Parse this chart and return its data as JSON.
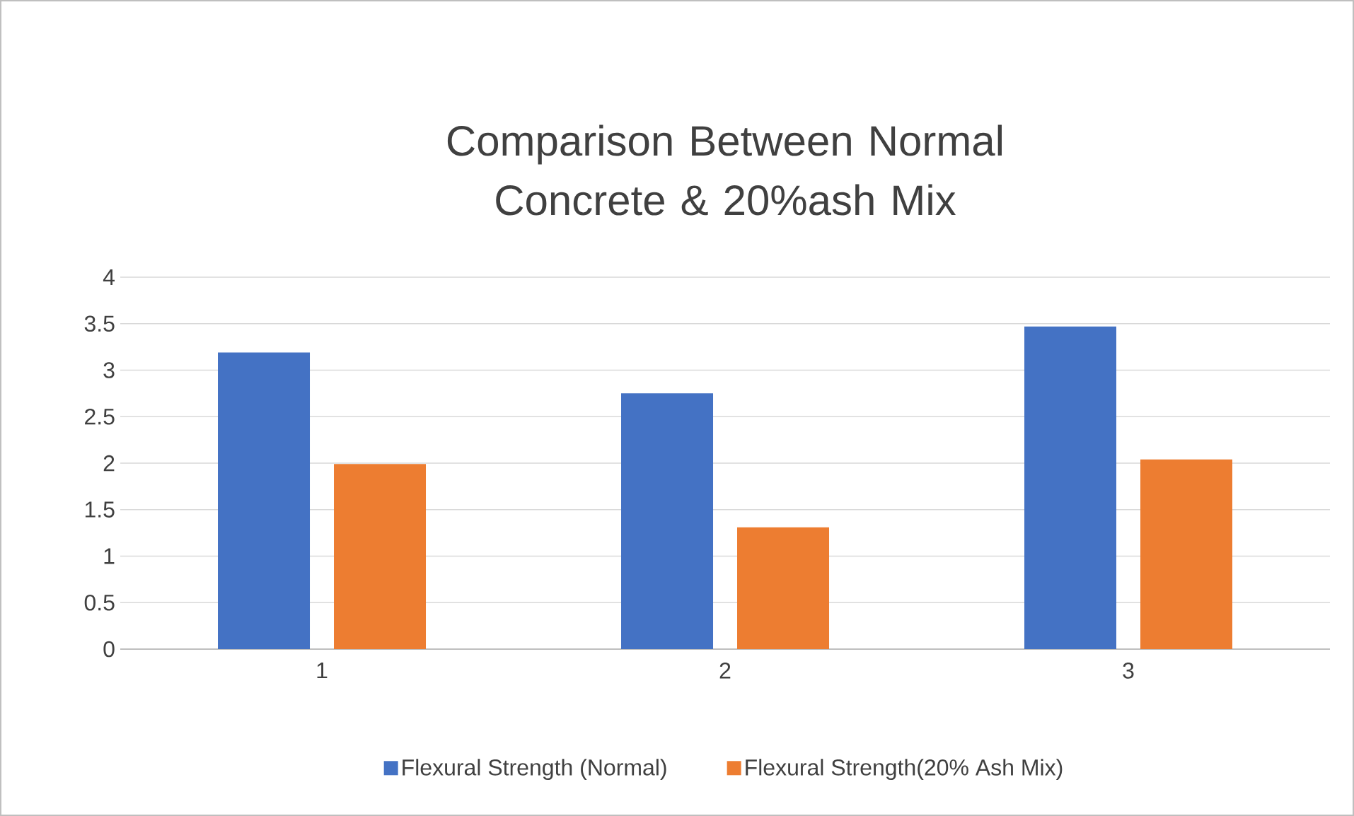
{
  "chart_data": {
    "type": "bar",
    "title": "Comparison Between Normal Concrete & 20%ash Mix",
    "categories": [
      "1",
      "2",
      "3"
    ],
    "series": [
      {
        "name": "Flexural Strength (Normal)",
        "color": "#4472c4",
        "values": [
          3.19,
          2.75,
          3.47
        ]
      },
      {
        "name": "Flexural Strength(20% Ash Mix)",
        "color": "#ed7d31",
        "values": [
          1.99,
          1.31,
          2.04
        ]
      }
    ],
    "ylim": [
      0,
      4
    ],
    "yticks": [
      0,
      0.5,
      1,
      1.5,
      2,
      2.5,
      3,
      3.5,
      4
    ],
    "grid": "y",
    "legend": "bottom"
  }
}
